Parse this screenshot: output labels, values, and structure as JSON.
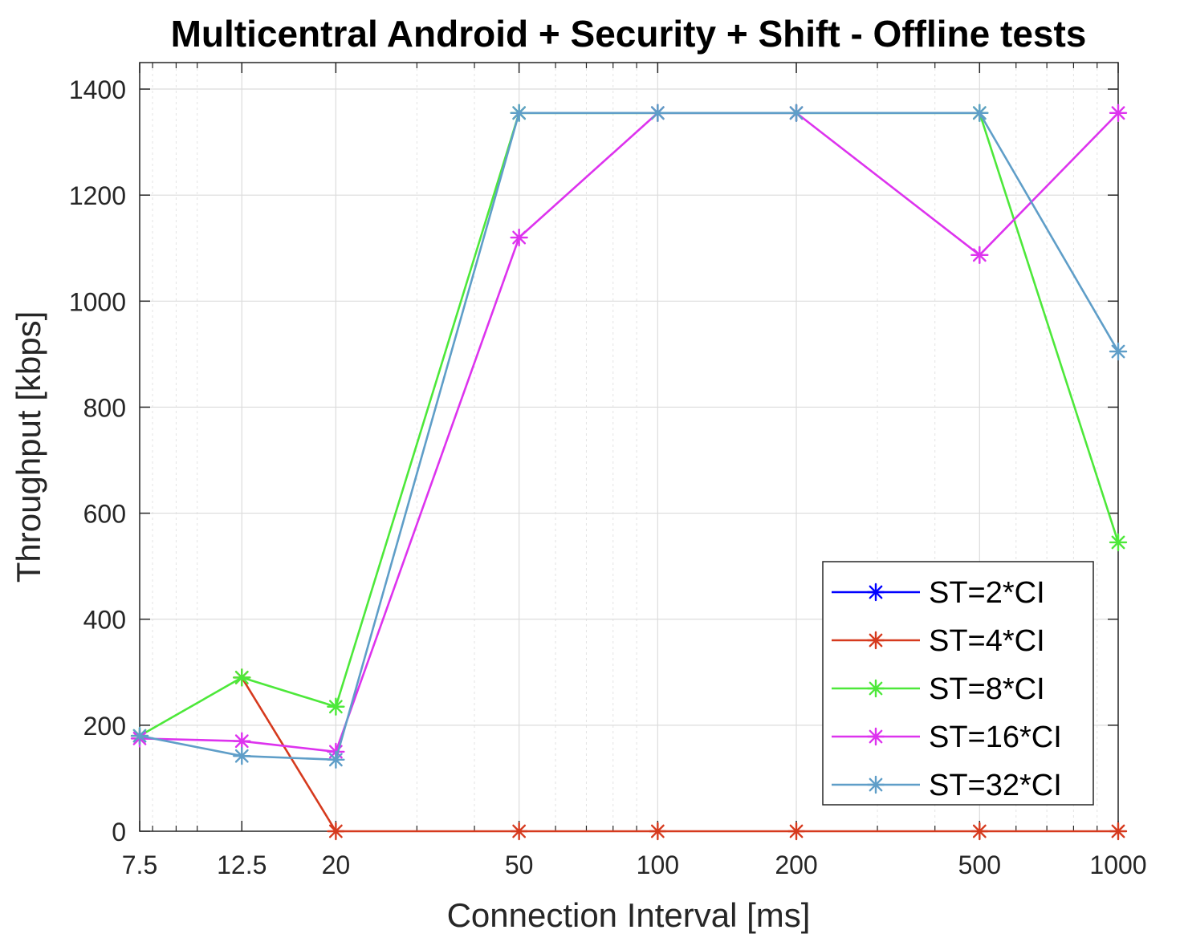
{
  "chart_data": {
    "type": "line",
    "title": "Multicentral Android + Security + Shift - Offline tests",
    "xlabel": "Connection Interval [ms]",
    "ylabel": "Throughput [kbps]",
    "x_scale": "log",
    "x": [
      7.5,
      12.5,
      20,
      50,
      100,
      200,
      500,
      1000
    ],
    "x_tick_labels": [
      "7.5",
      "12.5",
      "20",
      "50",
      "100",
      "200",
      "500",
      "1000"
    ],
    "xlim": [
      7.5,
      1000
    ],
    "ylim": [
      0,
      1450
    ],
    "y_ticks": [
      0,
      200,
      400,
      600,
      800,
      1000,
      1200,
      1400
    ],
    "y_tick_labels": [
      "0",
      "200",
      "400",
      "600",
      "800",
      "1000",
      "1200",
      "1400"
    ],
    "grid": true,
    "legend_position": "bottom-right",
    "marker": "asterisk",
    "series": [
      {
        "name": "ST=2*CI",
        "color": "#0000ff",
        "values": [
          null,
          null,
          null,
          null,
          null,
          null,
          null,
          null
        ]
      },
      {
        "name": "ST=4*CI",
        "color": "#d63a1e",
        "values": [
          null,
          290,
          0,
          0,
          0,
          0,
          0,
          0
        ]
      },
      {
        "name": "ST=8*CI",
        "color": "#4de83a",
        "values": [
          180,
          290,
          235,
          1355,
          1355,
          1355,
          1355,
          545
        ]
      },
      {
        "name": "ST=16*CI",
        "color": "#dd33ee",
        "values": [
          175,
          170,
          150,
          1120,
          1355,
          1355,
          1087,
          1355
        ]
      },
      {
        "name": "ST=32*CI",
        "color": "#5f9ec8",
        "values": [
          180,
          142,
          135,
          1355,
          1355,
          1355,
          1355,
          905
        ]
      }
    ]
  }
}
